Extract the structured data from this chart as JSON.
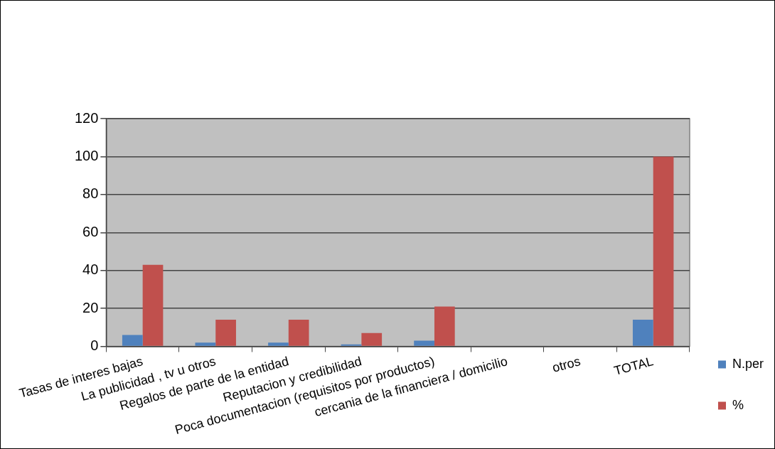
{
  "chart_data": {
    "type": "bar",
    "categories": [
      "Tasas de interes bajas",
      "La publicidad , tv u otros",
      "Regalos de parte de la entidad",
      "Reputacion y credibilidad",
      "Poca documentacion (requisitos por productos)",
      "cercania de la financiera / domicilio",
      "otros",
      "TOTAL"
    ],
    "series": [
      {
        "name": "N.per",
        "color": "#4f81bd",
        "values": [
          6,
          2,
          2,
          1,
          3,
          0,
          0,
          14
        ]
      },
      {
        "name": "%",
        "color": "#c0504d",
        "values": [
          43,
          14,
          14,
          7,
          21,
          0,
          0,
          100
        ]
      }
    ],
    "ylim": [
      0,
      120
    ],
    "yticks": [
      0,
      20,
      40,
      60,
      80,
      100,
      120
    ],
    "grid": "y",
    "legend": "bottom right"
  }
}
